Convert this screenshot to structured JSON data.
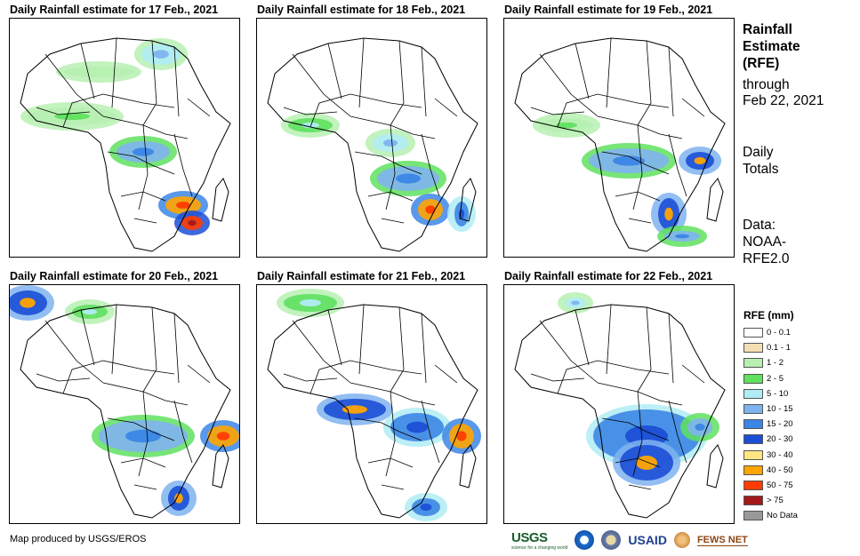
{
  "panels": [
    {
      "title": "Daily Rainfall estimate for 17 Feb., 2021"
    },
    {
      "title": "Daily Rainfall estimate for 18 Feb., 2021"
    },
    {
      "title": "Daily Rainfall estimate for 19 Feb., 2021"
    },
    {
      "title": "Daily Rainfall estimate for 20 Feb., 2021"
    },
    {
      "title": "Daily Rainfall estimate for 21 Feb., 2021"
    },
    {
      "title": "Daily Rainfall estimate for 22 Feb., 2021"
    }
  ],
  "sidebar": {
    "title_lines": [
      "Rainfall",
      "Estimate",
      "(RFE)"
    ],
    "through": "through",
    "date": "Feb 22, 2021",
    "daily_lines": [
      "Daily",
      "Totals"
    ],
    "data_lines": [
      "Data:",
      "NOAA-",
      "RFE2.0"
    ]
  },
  "legend": {
    "title": "RFE (mm)",
    "items": [
      {
        "label": "0 - 0.1",
        "color": "#ffffff"
      },
      {
        "label": "0.1 - 1",
        "color": "#f5deb3"
      },
      {
        "label": "1 - 2",
        "color": "#b7f0b1"
      },
      {
        "label": "2 - 5",
        "color": "#5fe05f"
      },
      {
        "label": "5 - 10",
        "color": "#b0ecf5"
      },
      {
        "label": "10 - 15",
        "color": "#7fb3f0"
      },
      {
        "label": "15 - 20",
        "color": "#3c86e6"
      },
      {
        "label": "20 - 30",
        "color": "#1c4fd6"
      },
      {
        "label": "30 - 40",
        "color": "#ffe680"
      },
      {
        "label": "40 - 50",
        "color": "#ffa500"
      },
      {
        "label": "50 - 75",
        "color": "#ff3c00"
      },
      {
        "label": "> 75",
        "color": "#a31a1a"
      },
      {
        "label": "No Data",
        "color": "#999999"
      }
    ]
  },
  "footer": {
    "credit": "Map produced by USGS/EROS"
  },
  "logos": {
    "usgs": "USGS",
    "usgs_tag": "science for a changing world",
    "usaid": "USAID",
    "fews": "FEWS NET"
  }
}
